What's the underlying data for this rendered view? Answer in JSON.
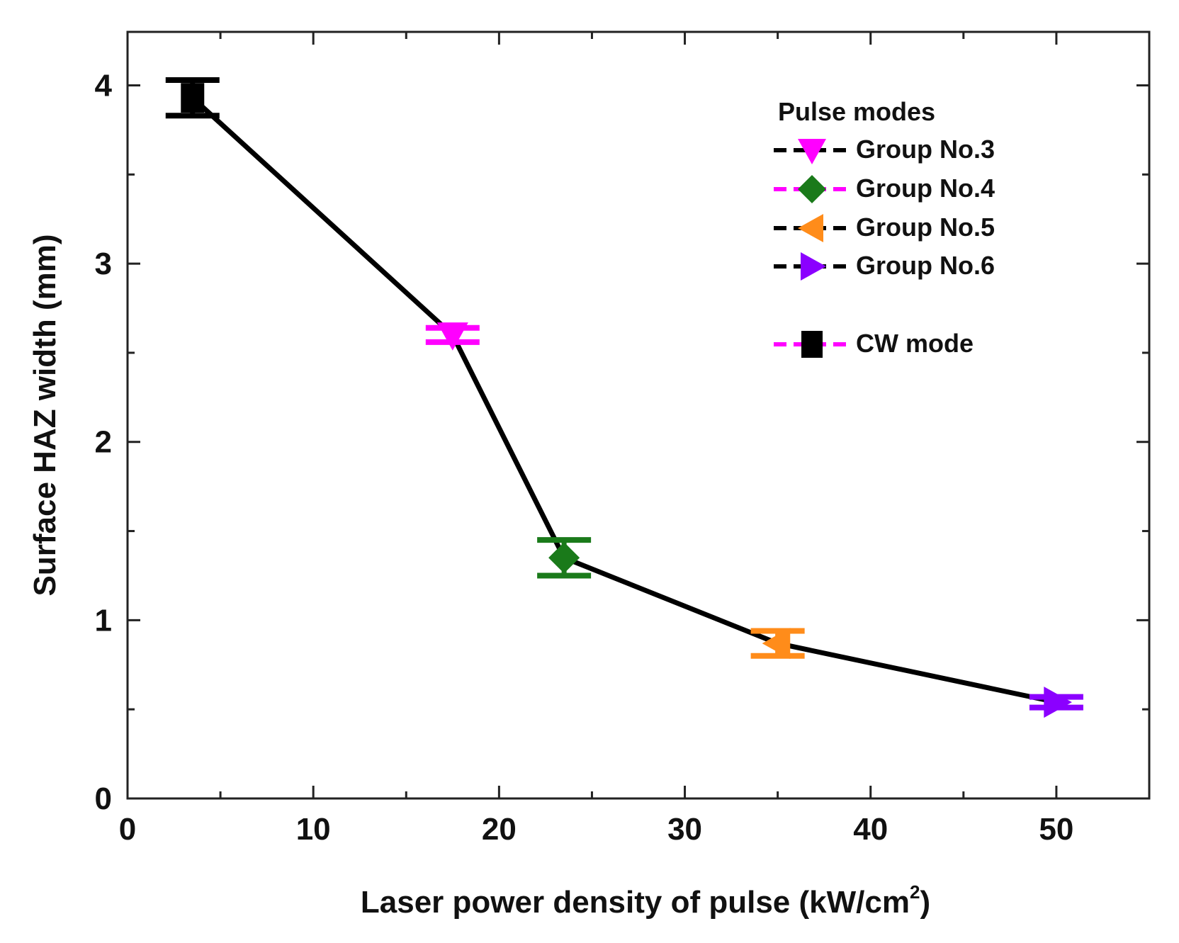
{
  "chart_data": {
    "type": "line",
    "title": "",
    "xlabel": "Laser power density of pulse (kW/cm",
    "xlabel_sup": "2",
    "xlabel_close": ")",
    "ylabel": "Surface HAZ width (mm)",
    "xlim": [
      0,
      55
    ],
    "ylim": [
      0,
      4.3
    ],
    "x_ticks": [
      0,
      10,
      20,
      30,
      40,
      50
    ],
    "y_ticks": [
      0,
      1,
      2,
      3,
      4
    ],
    "x_tick_labels": [
      "0",
      "10",
      "20",
      "30",
      "40",
      "50"
    ],
    "y_tick_labels": [
      "0",
      "1",
      "2",
      "3",
      "4"
    ],
    "x_minor_ticks": [
      5,
      15,
      25,
      35,
      45
    ],
    "y_minor_ticks": [
      0.5,
      1.5,
      2.5,
      3.5
    ],
    "grid": false,
    "line_color": "#000000",
    "points": [
      {
        "name": "CW mode",
        "x": 3.5,
        "y": 3.93,
        "err": 0.1,
        "marker": "square",
        "color": "#000000"
      },
      {
        "name": "Group No.3",
        "x": 17.5,
        "y": 2.6,
        "err": 0.04,
        "marker": "triangle-down",
        "color": "#ff00ff"
      },
      {
        "name": "Group No.4",
        "x": 23.5,
        "y": 1.35,
        "err": 0.1,
        "marker": "diamond",
        "color": "#1a7a1a"
      },
      {
        "name": "Group No.5",
        "x": 35,
        "y": 0.87,
        "err": 0.07,
        "marker": "triangle-left",
        "color": "#ff8c1a"
      },
      {
        "name": "Group No.6",
        "x": 50,
        "y": 0.54,
        "err": 0.03,
        "marker": "triangle-right",
        "color": "#8b00ff"
      }
    ],
    "legend": {
      "title": "Pulse modes",
      "placement": "top-right",
      "entries": [
        {
          "label": "Group No.3",
          "marker": "triangle-down",
          "color": "#ff00ff",
          "line_color": "#000000"
        },
        {
          "label": "Group No.4",
          "marker": "diamond",
          "color": "#1a7a1a",
          "line_color": "#ff00ff"
        },
        {
          "label": "Group No.5",
          "marker": "triangle-left",
          "color": "#ff8c1a",
          "line_color": "#000000"
        },
        {
          "label": "Group No.6",
          "marker": "triangle-right",
          "color": "#8b00ff",
          "line_color": "#000000"
        },
        {
          "label": "CW mode",
          "marker": "square",
          "color": "#000000",
          "line_color": "#ff00ff"
        }
      ]
    }
  }
}
